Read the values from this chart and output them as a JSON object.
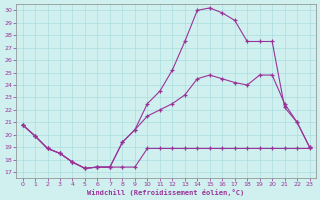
{
  "xlabel": "Windchill (Refroidissement éolien,°C)",
  "background_color": "#cff0ee",
  "line_color": "#993399",
  "grid_color": "#aadddd",
  "x_ticks": [
    0,
    1,
    2,
    3,
    4,
    5,
    6,
    7,
    8,
    9,
    10,
    11,
    12,
    13,
    14,
    15,
    16,
    17,
    18,
    19,
    20,
    21,
    22,
    23
  ],
  "y_ticks": [
    17,
    18,
    19,
    20,
    21,
    22,
    23,
    24,
    25,
    26,
    27,
    28,
    29,
    30
  ],
  "xlim": [
    -0.5,
    23.5
  ],
  "ylim": [
    16.5,
    30.5
  ],
  "series1_x": [
    0,
    1,
    2,
    3,
    4,
    5,
    6,
    7,
    8,
    9,
    10,
    11,
    12,
    13,
    14,
    15,
    16,
    17,
    18,
    19,
    20,
    21,
    22,
    23
  ],
  "series1_y": [
    20.8,
    19.9,
    18.9,
    18.5,
    17.8,
    17.3,
    17.4,
    17.4,
    17.4,
    17.4,
    18.9,
    18.9,
    18.9,
    18.9,
    18.9,
    18.9,
    18.9,
    18.9,
    18.9,
    18.9,
    18.9,
    18.9,
    18.9,
    18.9
  ],
  "series2_x": [
    0,
    1,
    2,
    3,
    4,
    5,
    6,
    7,
    8,
    9,
    10,
    11,
    12,
    13,
    14,
    15,
    16,
    17,
    18,
    19,
    20,
    21,
    22,
    23
  ],
  "series2_y": [
    20.8,
    19.9,
    18.9,
    18.5,
    17.8,
    17.3,
    17.4,
    17.4,
    19.4,
    20.4,
    21.5,
    22.0,
    22.5,
    23.2,
    24.5,
    24.8,
    24.5,
    24.2,
    24.0,
    24.8,
    24.8,
    22.5,
    21.0,
    19.0
  ],
  "series3_x": [
    0,
    1,
    2,
    3,
    4,
    5,
    6,
    7,
    8,
    9,
    10,
    11,
    12,
    13,
    14,
    15,
    16,
    17,
    18,
    19,
    20,
    21,
    22,
    23
  ],
  "series3_y": [
    20.8,
    19.9,
    18.9,
    18.5,
    17.8,
    17.3,
    17.4,
    17.4,
    19.4,
    20.4,
    22.5,
    23.5,
    25.2,
    27.5,
    30.0,
    30.2,
    29.8,
    29.2,
    27.5,
    27.5,
    27.5,
    22.2,
    21.0,
    19.0
  ]
}
